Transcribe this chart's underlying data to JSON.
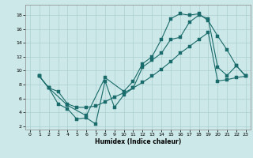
{
  "xlabel": "Humidex (Indice chaleur)",
  "bg_color": "#cce8e8",
  "line_color": "#1a6b6b",
  "grid_color": "#aacfcf",
  "xlim": [
    -0.5,
    23.5
  ],
  "ylim": [
    1.5,
    19.5
  ],
  "xticks": [
    0,
    1,
    2,
    3,
    4,
    5,
    6,
    7,
    8,
    9,
    10,
    11,
    12,
    13,
    14,
    15,
    16,
    17,
    18,
    19,
    20,
    21,
    22,
    23
  ],
  "yticks": [
    2,
    4,
    6,
    8,
    10,
    12,
    14,
    16,
    18
  ],
  "line1_x": [
    1,
    2,
    3,
    4,
    5,
    6,
    7,
    8,
    9,
    10,
    11,
    12,
    13,
    14,
    15,
    16,
    17,
    18,
    19,
    20,
    21,
    22,
    23
  ],
  "line1_y": [
    9.2,
    7.5,
    7.0,
    5.2,
    4.7,
    4.7,
    4.9,
    5.5,
    6.2,
    6.8,
    7.5,
    8.3,
    9.2,
    10.2,
    11.3,
    12.5,
    13.5,
    14.5,
    15.5,
    8.5,
    8.7,
    9.0,
    9.2
  ],
  "line2_x": [
    1,
    2,
    3,
    4,
    5,
    6,
    7,
    8,
    9,
    10,
    11,
    12,
    13,
    14,
    15,
    16,
    17,
    18,
    19,
    20,
    21,
    22,
    23
  ],
  "line2_y": [
    9.2,
    7.5,
    5.2,
    4.5,
    3.0,
    3.2,
    2.3,
    8.5,
    4.7,
    6.5,
    7.5,
    10.5,
    11.5,
    12.5,
    14.5,
    14.8,
    17.0,
    18.0,
    17.5,
    10.5,
    9.3,
    10.7,
    9.2
  ],
  "line3_x": [
    1,
    2,
    4,
    6,
    8,
    10,
    11,
    12,
    13,
    14,
    15,
    16,
    17,
    18,
    19,
    20,
    21,
    22,
    23
  ],
  "line3_y": [
    9.2,
    7.5,
    5.0,
    3.5,
    9.0,
    7.0,
    8.5,
    11.0,
    12.0,
    14.5,
    17.5,
    18.2,
    18.0,
    18.2,
    17.2,
    15.0,
    13.0,
    10.7,
    9.2
  ]
}
